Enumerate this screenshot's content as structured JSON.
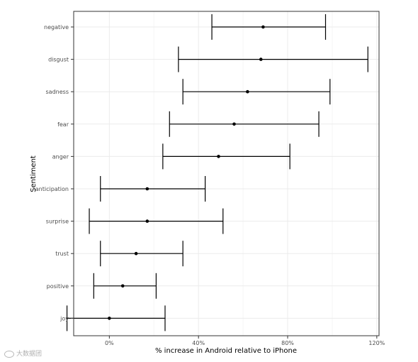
{
  "chart_data": {
    "type": "errorbar",
    "ylabel": "Sentiment",
    "xlabel": "% increase in Android relative to iPhone",
    "x_unit": "%",
    "xlim": [
      -16,
      121
    ],
    "x_ticks": [
      0,
      40,
      80,
      120
    ],
    "x_tick_labels": [
      "0%",
      "40%",
      "80%",
      "120%"
    ],
    "grid": true,
    "categories": [
      "negative",
      "disgust",
      "sadness",
      "fear",
      "anger",
      "anticipation",
      "surprise",
      "trust",
      "positive",
      "joy"
    ],
    "estimate": [
      69,
      68,
      62,
      56,
      49,
      17,
      17,
      12,
      6,
      0
    ],
    "lower": [
      46,
      31,
      33,
      27,
      24,
      -4,
      -9,
      -4,
      -7,
      -19
    ],
    "upper": [
      97,
      116,
      99,
      94,
      81,
      43,
      51,
      33,
      21,
      25
    ]
  },
  "watermark": {
    "text": "大数据团"
  }
}
